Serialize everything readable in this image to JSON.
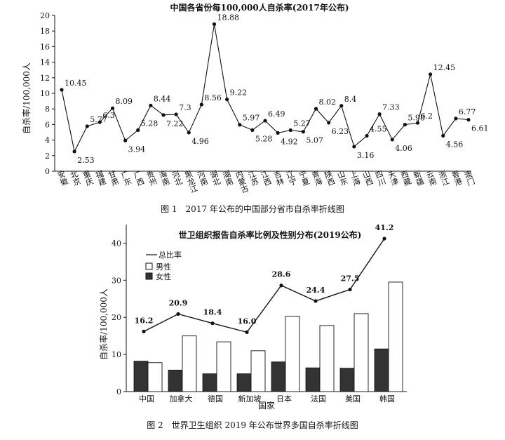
{
  "chart_data": [
    {
      "type": "line",
      "title": "中国各省份每100,000人自杀率(2017年公布)",
      "xlabel": "",
      "ylabel": "自杀率/100,000人",
      "ylim": [
        0,
        20
      ],
      "yticks": [
        0,
        2,
        4,
        6,
        8,
        10,
        12,
        14,
        16,
        18,
        20
      ],
      "grid": false,
      "categories": [
        "安徽",
        "北京",
        "重庆",
        "福建",
        "甘肃",
        "广东",
        "广西",
        "贵州",
        "海南",
        "河北",
        "黑龙江",
        "河南",
        "湖北",
        "湖南",
        "内蒙古",
        "江苏",
        "江西",
        "吉林",
        "辽宁",
        "宁夏",
        "青海",
        "陕西",
        "山东",
        "上海",
        "山西",
        "四川",
        "天津",
        "西藏",
        "新疆",
        "云南",
        "浙江",
        "香港",
        "澳门"
      ],
      "values": [
        10.45,
        2.53,
        5.77,
        6.3,
        8.09,
        3.94,
        5.28,
        8.44,
        7.22,
        7.3,
        4.96,
        8.56,
        18.88,
        9.22,
        5.97,
        5.28,
        6.49,
        4.92,
        5.27,
        5.07,
        8.02,
        6.23,
        8.4,
        3.16,
        4.55,
        7.33,
        4.06,
        5.98,
        6.2,
        12.45,
        4.56,
        6.77,
        6.61
      ],
      "point_labels": [
        "10.45",
        "2.53",
        "5.77",
        "6.3",
        "8.09",
        "3.94",
        "5.28",
        "8.44",
        "7.22",
        "7.3",
        "4.96",
        "8.56",
        "18.88",
        "9.22",
        "5.97",
        "5.28",
        "6.49",
        "4.92",
        "5.27",
        "5.07",
        "8.02",
        "6.23",
        "8.4",
        "3.16",
        "4.55",
        "7.33",
        "4.06",
        "5.98",
        "6.2",
        "12.45",
        "4.56",
        "6.77",
        "6.61"
      ]
    },
    {
      "type": "bar",
      "title": "世卫组织报告自杀率比例及性别分布(2019公布)",
      "xlabel": "国家",
      "ylabel": "自杀率/100,000人",
      "ylim": [
        0,
        45
      ],
      "yticks": [
        0,
        10,
        20,
        30,
        40
      ],
      "grid": false,
      "legend_position": "top-left",
      "categories": [
        "中国",
        "加拿大",
        "德国",
        "新加坡",
        "日本",
        "法国",
        "美国",
        "韩国"
      ],
      "series": [
        {
          "name": "总比率",
          "type": "line",
          "values": [
            16.2,
            20.9,
            18.4,
            16.0,
            28.6,
            24.4,
            27.5,
            41.2
          ],
          "point_labels": [
            "16.2",
            "20.9",
            "18.4",
            "16.0",
            "28.6",
            "24.4",
            "27.5",
            "41.2"
          ],
          "color": "#111111"
        },
        {
          "name": "男性",
          "type": "bar",
          "values": [
            7.8,
            15.0,
            13.4,
            11.0,
            20.3,
            17.8,
            21.0,
            29.5
          ],
          "color": "#ffffff"
        },
        {
          "name": "女性",
          "type": "bar",
          "values": [
            8.2,
            5.8,
            4.8,
            4.8,
            8.0,
            6.4,
            6.3,
            11.5
          ],
          "color": "#333333"
        }
      ]
    }
  ],
  "captions": {
    "fig1": "图 1　2017 年公布的中国部分省市自杀率折线图",
    "fig2": "图 2　世界卫生组织 2019 年公布世界多国自杀率折线图"
  }
}
